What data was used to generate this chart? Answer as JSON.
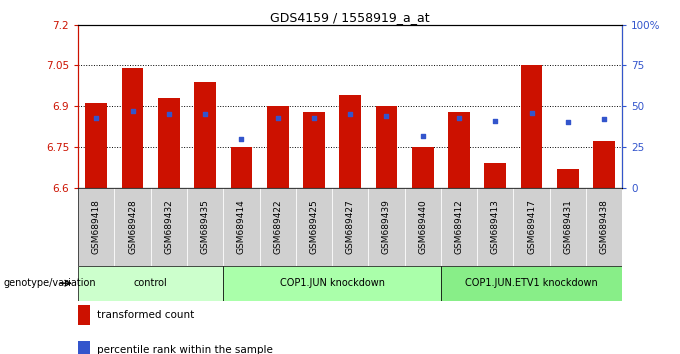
{
  "title": "GDS4159 / 1558919_a_at",
  "samples": [
    "GSM689418",
    "GSM689428",
    "GSM689432",
    "GSM689435",
    "GSM689414",
    "GSM689422",
    "GSM689425",
    "GSM689427",
    "GSM689439",
    "GSM689440",
    "GSM689412",
    "GSM689413",
    "GSM689417",
    "GSM689431",
    "GSM689438"
  ],
  "bar_values": [
    6.91,
    7.04,
    6.93,
    6.99,
    6.75,
    6.9,
    6.88,
    6.94,
    6.9,
    6.75,
    6.88,
    6.69,
    7.05,
    6.67,
    6.77
  ],
  "dot_values": [
    43,
    47,
    45,
    45,
    30,
    43,
    43,
    45,
    44,
    32,
    43,
    41,
    46,
    40,
    42
  ],
  "bar_color": "#cc1100",
  "dot_color": "#3355cc",
  "ymin": 6.6,
  "ymax": 7.2,
  "yticks": [
    6.6,
    6.75,
    6.9,
    7.05,
    7.2
  ],
  "ytick_labels": [
    "6.6",
    "6.75",
    "6.9",
    "7.05",
    "7.2"
  ],
  "right_yticks": [
    0,
    25,
    50,
    75,
    100
  ],
  "right_ytick_labels": [
    "0",
    "25",
    "50",
    "75",
    "100%"
  ],
  "groups": [
    {
      "label": "control",
      "start": 0,
      "end": 3,
      "color": "#ccffcc"
    },
    {
      "label": "COP1.JUN knockdown",
      "start": 4,
      "end": 9,
      "color": "#aaffaa"
    },
    {
      "label": "COP1.JUN.ETV1 knockdown",
      "start": 10,
      "end": 14,
      "color": "#88ee88"
    }
  ],
  "group_label_prefix": "genotype/variation",
  "legend_items": [
    {
      "label": "transformed count",
      "color": "#cc1100"
    },
    {
      "label": "percentile rank within the sample",
      "color": "#3355cc"
    }
  ]
}
